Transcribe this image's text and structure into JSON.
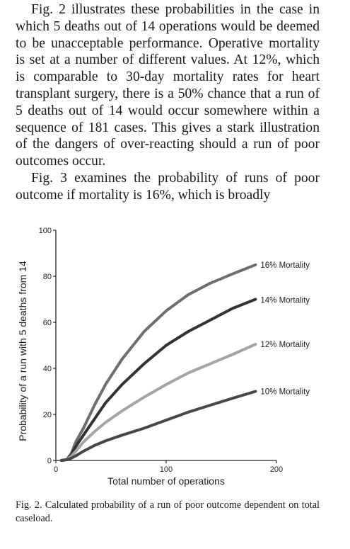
{
  "article": {
    "paragraph_1": "Fig. 2 illustrates these probabilities in the case in which 5 deaths out of 14 operations would be deemed to be unacceptable performance. Operative mortality is set at a number of different values. At 12%, which is comparable to 30-day mortality rates for heart transplant surgery, there is a 50% chance that a run of 5 deaths out of 14 would occur somewhere within a sequence of 181 cases. This gives a stark illustration of the dangers of over-reacting should a run of poor outcomes occur.",
    "paragraph_2": "Fig. 3 examines the probability of runs of poor outcome if mortality is 16%, which is broadly"
  },
  "figure": {
    "caption": "Fig. 2. Calculated probability of a run of poor outcome dependent on total caseload."
  },
  "chart_data": {
    "type": "line",
    "title": "",
    "xlabel": "Total number of operations",
    "ylabel": "Probability of a run with 5 deaths from 14",
    "xlim": [
      0,
      200
    ],
    "ylim": [
      0,
      100
    ],
    "x_ticks": [
      0,
      100,
      200
    ],
    "y_ticks": [
      0,
      20,
      40,
      60,
      80,
      100
    ],
    "grid": false,
    "legend": "labels at line ends (right)",
    "series": [
      {
        "name": "16% Mortality",
        "color": "#6e6e6e",
        "x": [
          5,
          10,
          14,
          18,
          25,
          35,
          45,
          60,
          80,
          100,
          120,
          140,
          160,
          181
        ],
        "y": [
          0,
          0.5,
          3,
          8,
          14,
          24,
          33,
          44,
          56,
          65,
          72,
          77,
          81,
          85
        ]
      },
      {
        "name": "14% Mortality",
        "color": "#333333",
        "x": [
          5,
          10,
          14,
          18,
          25,
          35,
          45,
          60,
          80,
          100,
          120,
          140,
          160,
          181
        ],
        "y": [
          0,
          0.5,
          2.5,
          6,
          11,
          18,
          25,
          33,
          42,
          50,
          56,
          61,
          66,
          70
        ]
      },
      {
        "name": "12% Mortality",
        "color": "#a4a4a4",
        "x": [
          5,
          10,
          14,
          18,
          25,
          35,
          45,
          60,
          80,
          100,
          120,
          140,
          160,
          181
        ],
        "y": [
          0,
          0.5,
          1.8,
          4,
          8,
          12.5,
          16.5,
          21.5,
          27.5,
          33,
          38,
          42,
          46,
          50.5
        ]
      },
      {
        "name": "10% Mortality",
        "color": "#474747",
        "x": [
          5,
          10,
          14,
          18,
          25,
          35,
          45,
          60,
          80,
          100,
          120,
          140,
          160,
          181
        ],
        "y": [
          0,
          0.3,
          1,
          2,
          4,
          6.5,
          8.5,
          11,
          14,
          17.5,
          21,
          24,
          27,
          30
        ]
      }
    ]
  }
}
